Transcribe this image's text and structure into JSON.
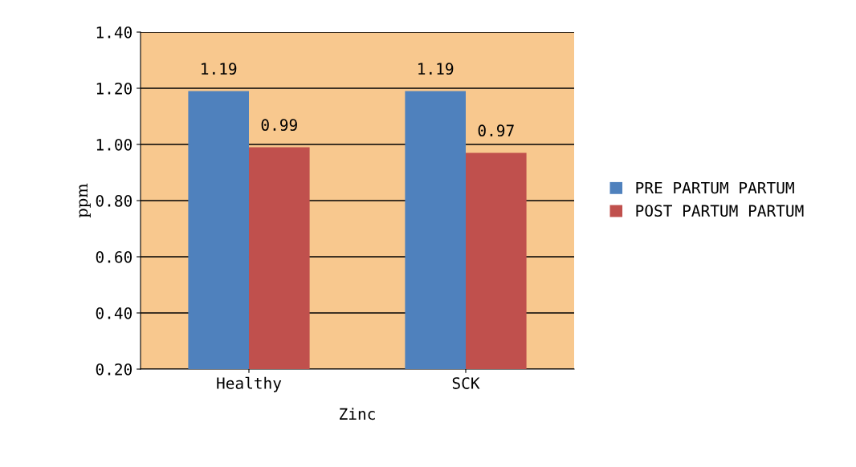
{
  "chart_data": {
    "type": "bar",
    "xlabel": "Zinc",
    "ylabel": "ppm",
    "categories": [
      "Healthy",
      "SCK"
    ],
    "series": [
      {
        "name": "PRE PARTUM PARTUM",
        "color": "#4f81bd",
        "values": [
          1.19,
          1.19
        ]
      },
      {
        "name": "POST PARTUM PARTUM",
        "color": "#c0504d",
        "values": [
          0.99,
          0.97
        ]
      }
    ],
    "ylim": [
      0.2,
      1.4
    ],
    "yticks": [
      {
        "value": 0.2,
        "label": "0.20"
      },
      {
        "value": 0.4,
        "label": "0.40"
      },
      {
        "value": 0.6,
        "label": "0.60"
      },
      {
        "value": 0.8,
        "label": "0.80"
      },
      {
        "value": 1.0,
        "label": "1.00"
      },
      {
        "value": 1.2,
        "label": "1.20"
      },
      {
        "value": 1.4,
        "label": "1.40"
      }
    ],
    "grid": "y",
    "legend": "right",
    "data_labels": true
  }
}
